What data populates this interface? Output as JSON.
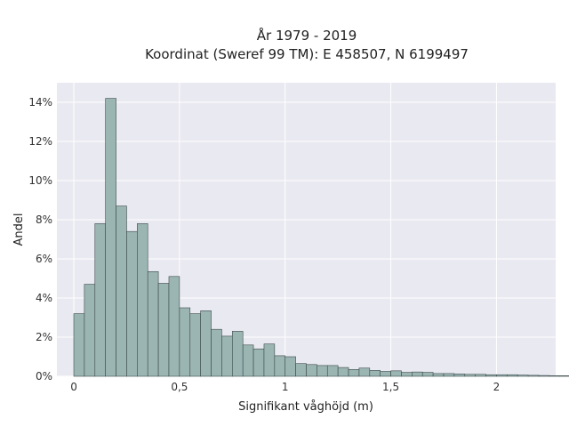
{
  "chart_data": {
    "type": "bar",
    "title": [
      "År 1979 - 2019",
      "Koordinat (Sweref 99 TM): E 458507, N 6199497"
    ],
    "xlabel": "Signifikant våghöjd (m)",
    "ylabel": "Andel",
    "xlim": [
      -0.08,
      2.28
    ],
    "ylim": [
      0,
      15
    ],
    "grid": true,
    "legend": "none",
    "bin_start": 0,
    "bin_width": 0.05,
    "x_ticks": [
      {
        "value": 0,
        "label": "0"
      },
      {
        "value": 0.5,
        "label": "0,5"
      },
      {
        "value": 1,
        "label": "1"
      },
      {
        "value": 1.5,
        "label": "1,5"
      },
      {
        "value": 2,
        "label": "2"
      }
    ],
    "y_ticks": [
      {
        "value": 0,
        "label": "0%"
      },
      {
        "value": 2,
        "label": "2%"
      },
      {
        "value": 4,
        "label": "4%"
      },
      {
        "value": 6,
        "label": "6%"
      },
      {
        "value": 8,
        "label": "8%"
      },
      {
        "value": 10,
        "label": "10%"
      },
      {
        "value": 12,
        "label": "12%"
      },
      {
        "value": 14,
        "label": "14%"
      }
    ],
    "values": [
      3.2,
      4.7,
      7.8,
      14.2,
      8.7,
      7.4,
      7.8,
      5.35,
      4.75,
      5.1,
      3.5,
      3.2,
      3.35,
      2.4,
      2.05,
      2.3,
      1.6,
      1.4,
      1.65,
      1.05,
      1.0,
      0.65,
      0.6,
      0.55,
      0.55,
      0.45,
      0.35,
      0.42,
      0.3,
      0.25,
      0.28,
      0.2,
      0.22,
      0.2,
      0.14,
      0.14,
      0.12,
      0.1,
      0.1,
      0.08,
      0.08,
      0.08,
      0.06,
      0.05,
      0.04,
      0.03,
      0.03,
      0.02,
      0.02,
      0.01,
      0.01,
      0.01,
      0.01,
      0.01
    ]
  },
  "colors": {
    "plot_background": "#e9e9f1",
    "grid": "#ffffff",
    "bar_fill": "#9bb5b3",
    "bar_stroke": "#3b4a4a"
  }
}
